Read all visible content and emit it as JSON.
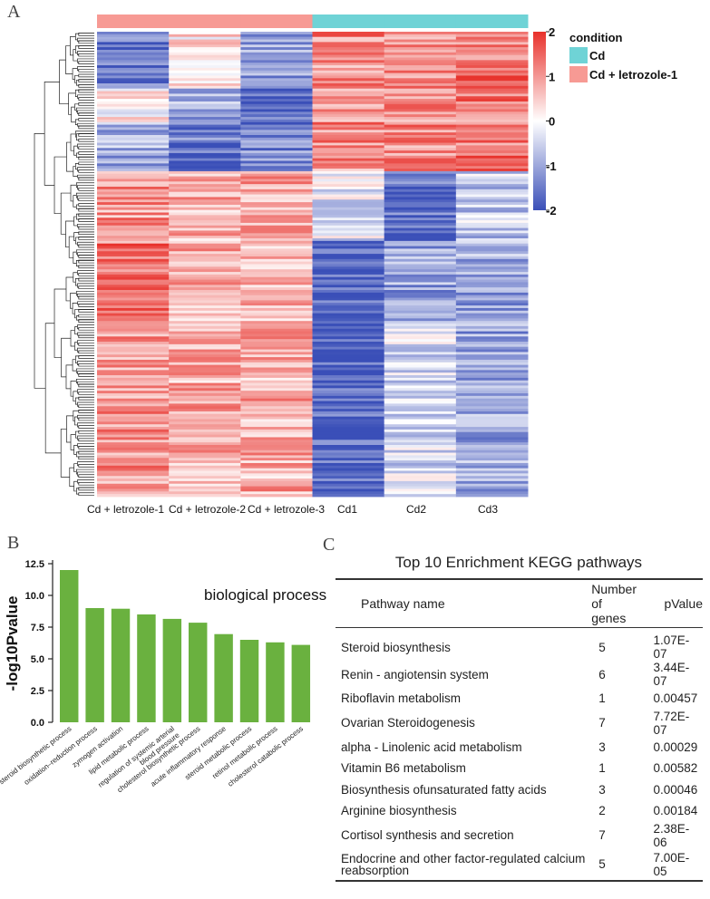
{
  "panel_labels": {
    "a": "A",
    "b": "B",
    "c": "C"
  },
  "colors": {
    "high": "#e8312b",
    "mid": "#ffffff",
    "low": "#3a4fb8",
    "cd": "#6fd3d6",
    "letrozole": "#f79a94",
    "bar": "#6ab13f"
  },
  "heatmap": {
    "columns": [
      "Cd + letrozole-1",
      "Cd + letrozole-2",
      "Cd + letrozole-3",
      "Cd1",
      "Cd2",
      "Cd3"
    ],
    "column_groups": [
      "letrozole",
      "letrozole",
      "letrozole",
      "cd",
      "cd",
      "cd"
    ],
    "legend_title": "condition",
    "legend_items": [
      {
        "label": "Cd",
        "group": "cd"
      },
      {
        "label": "Cd + letrozole-1",
        "group": "letrozole"
      }
    ],
    "colorbar_ticks": [
      "2",
      "1",
      "0",
      "-1",
      "-2"
    ],
    "scale_range": [
      -2,
      2
    ]
  },
  "chart_data": {
    "type": "bar",
    "title": "biological process",
    "ylabel": "-log10Pvalue",
    "ylim": [
      0,
      12.5
    ],
    "yticks": [
      "0.0",
      "2.5",
      "5.0",
      "7.5",
      "10.0",
      "12.5"
    ],
    "categories": [
      "steroid biosynthetic process",
      "oxidation–reduction process",
      "zymogen activation",
      "lipid metabolic process",
      "regulation of systemic arterial blood pressure",
      "cholesterol biosynthetic process",
      "acute inflammatory response",
      "steroid metabolic process",
      "retinol metabolic process",
      "cholesterol catabolic process"
    ],
    "values": [
      12.0,
      9.0,
      8.95,
      8.5,
      8.15,
      7.85,
      6.95,
      6.5,
      6.3,
      6.1
    ]
  },
  "kegg": {
    "title": "Top 10 Enrichment KEGG pathways",
    "headers": {
      "name": "Pathway  name",
      "genes_line1": "Number of",
      "genes_line2": "genes",
      "pvalue": "pValue"
    },
    "rows": [
      {
        "name": "Steroid biosynthesis",
        "genes": "5",
        "pvalue": "1.07E-07"
      },
      {
        "name": "Renin - angiotensin system",
        "genes": "6",
        "pvalue": "3.44E-07"
      },
      {
        "name": "Riboflavin  metabolism",
        "genes": "1",
        "pvalue": "0.00457"
      },
      {
        "name": "Ovarian Steroidogenesis",
        "genes": "7",
        "pvalue": "7.72E-07"
      },
      {
        "name": "alpha - Linolenic acid metabolism",
        "genes": "3",
        "pvalue": "0.00029"
      },
      {
        "name": "Vitamin B6 metabolism",
        "genes": "1",
        "pvalue": "0.00582"
      },
      {
        "name": "Biosynthesis ofunsaturated fatty acids",
        "genes": "3",
        "pvalue": "0.00046"
      },
      {
        "name": "Arginine  biosynthesis",
        "genes": "2",
        "pvalue": "0.00184"
      },
      {
        "name": "Cortisol synthesis and secretion",
        "genes": "7",
        "pvalue": "2.38E-06"
      },
      {
        "name": "Endocrine and other factor-regulated calcium reabsorption",
        "genes": "5",
        "pvalue": "7.00E- 05"
      }
    ]
  }
}
